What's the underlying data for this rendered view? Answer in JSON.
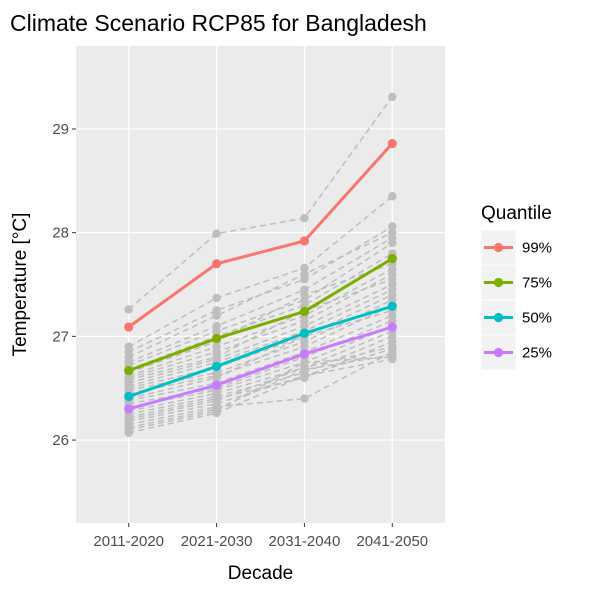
{
  "chart_data": {
    "type": "line",
    "title": "Climate Scenario RCP85 for Bangladesh",
    "xlabel": "Decade",
    "ylabel": "Temperature [°C]",
    "categories": [
      "2011-2020",
      "2021-2030",
      "2031-2040",
      "2041-2050"
    ],
    "ylim": [
      25.2,
      29.8
    ],
    "yticks": [
      26,
      27,
      28,
      29
    ],
    "grid": true,
    "legend_title": "Quantile",
    "legend_position": "right",
    "series": [
      {
        "name": "99%",
        "color": "#F8766D",
        "values": [
          27.09,
          27.7,
          27.92,
          28.86
        ]
      },
      {
        "name": "75%",
        "color": "#7CAE00",
        "values": [
          26.67,
          26.98,
          27.24,
          27.75
        ]
      },
      {
        "name": "50%",
        "color": "#00BFC4",
        "values": [
          26.42,
          26.71,
          27.03,
          27.29
        ]
      },
      {
        "name": "25%",
        "color": "#C77CFF",
        "values": [
          26.3,
          26.53,
          26.83,
          27.09
        ]
      }
    ],
    "background_series_color": "#BEBEBE",
    "background_series": [
      [
        27.26,
        27.99,
        28.14,
        29.31
      ],
      [
        26.9,
        27.37,
        27.66,
        28.35
      ],
      [
        26.85,
        27.25,
        27.55,
        28.06
      ],
      [
        26.8,
        27.2,
        27.6,
        28.0
      ],
      [
        26.75,
        27.1,
        27.45,
        27.95
      ],
      [
        26.72,
        27.05,
        27.35,
        27.9
      ],
      [
        26.68,
        27.0,
        27.3,
        27.8
      ],
      [
        26.65,
        26.95,
        27.4,
        27.7
      ],
      [
        26.62,
        26.9,
        27.2,
        27.65
      ],
      [
        26.6,
        26.85,
        27.15,
        27.6
      ],
      [
        26.58,
        26.8,
        27.25,
        27.55
      ],
      [
        26.55,
        26.78,
        27.1,
        27.5
      ],
      [
        26.52,
        26.75,
        27.05,
        27.45
      ],
      [
        26.5,
        26.7,
        27.0,
        27.4
      ],
      [
        26.48,
        26.65,
        26.95,
        27.35
      ],
      [
        26.45,
        26.62,
        26.9,
        27.3
      ],
      [
        26.4,
        26.6,
        27.0,
        27.25
      ],
      [
        26.38,
        26.55,
        26.85,
        27.2
      ],
      [
        26.35,
        26.5,
        26.8,
        27.15
      ],
      [
        26.32,
        26.48,
        26.75,
        27.1
      ],
      [
        26.28,
        26.45,
        26.7,
        27.05
      ],
      [
        26.25,
        26.42,
        26.65,
        27.0
      ],
      [
        26.22,
        26.4,
        26.6,
        26.95
      ],
      [
        26.2,
        26.38,
        26.7,
        26.9
      ],
      [
        26.18,
        26.35,
        26.62,
        26.88
      ],
      [
        26.15,
        26.32,
        26.4,
        26.85
      ],
      [
        26.12,
        26.3,
        26.68,
        26.82
      ],
      [
        26.1,
        26.28,
        26.75,
        26.8
      ],
      [
        26.07,
        26.26,
        26.62,
        26.78
      ]
    ]
  }
}
